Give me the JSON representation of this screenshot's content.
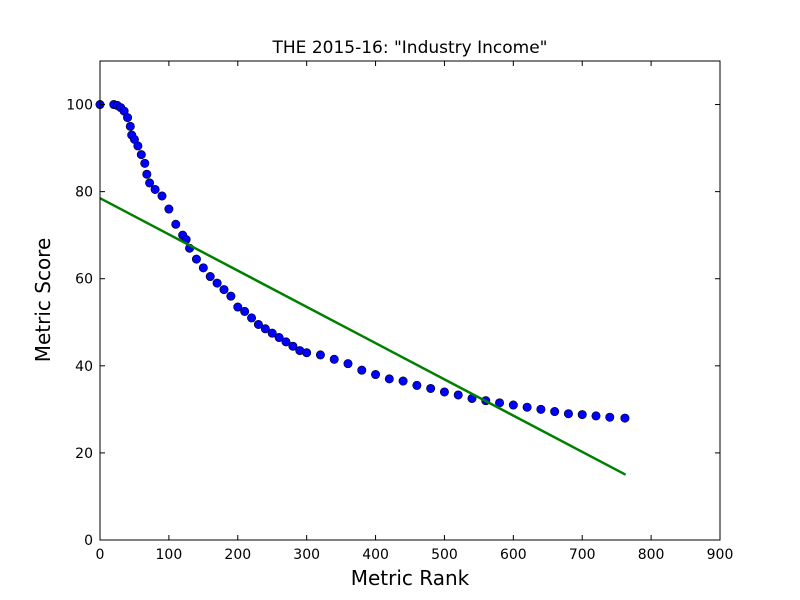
{
  "chart_data": {
    "type": "scatter",
    "title": "THE 2015-16: \"Industry Income\"",
    "xlabel": "Metric Rank",
    "ylabel": "Metric Score",
    "xlim": [
      0,
      900
    ],
    "ylim": [
      0,
      110
    ],
    "xticks": [
      0,
      100,
      200,
      300,
      400,
      500,
      600,
      700,
      800,
      900
    ],
    "yticks": [
      0,
      20,
      40,
      60,
      80,
      100
    ],
    "grid": false,
    "legend": "none",
    "series": [
      {
        "kind": "scatter",
        "color": "#0000ff",
        "edge_color": "#000000",
        "points": [
          [
            0,
            100
          ],
          [
            20,
            100
          ],
          [
            25,
            99.8
          ],
          [
            30,
            99.3
          ],
          [
            35,
            98.5
          ],
          [
            40,
            97
          ],
          [
            44,
            95
          ],
          [
            46,
            93
          ],
          [
            50,
            92
          ],
          [
            55,
            90.5
          ],
          [
            60,
            88.5
          ],
          [
            65,
            86.5
          ],
          [
            68,
            84
          ],
          [
            72,
            82
          ],
          [
            80,
            80.5
          ],
          [
            90,
            79
          ],
          [
            100,
            76
          ],
          [
            110,
            72.5
          ],
          [
            120,
            70
          ],
          [
            125,
            69
          ],
          [
            130,
            67
          ],
          [
            140,
            64.5
          ],
          [
            150,
            62.5
          ],
          [
            160,
            60.5
          ],
          [
            170,
            59
          ],
          [
            180,
            57.5
          ],
          [
            190,
            56
          ],
          [
            200,
            53.5
          ],
          [
            210,
            52.5
          ],
          [
            220,
            51
          ],
          [
            230,
            49.5
          ],
          [
            240,
            48.5
          ],
          [
            250,
            47.5
          ],
          [
            260,
            46.5
          ],
          [
            270,
            45.5
          ],
          [
            280,
            44.5
          ],
          [
            290,
            43.5
          ],
          [
            300,
            43
          ],
          [
            320,
            42.5
          ],
          [
            340,
            41.5
          ],
          [
            360,
            40.5
          ],
          [
            380,
            39
          ],
          [
            400,
            38
          ],
          [
            420,
            37
          ],
          [
            440,
            36.5
          ],
          [
            460,
            35.5
          ],
          [
            480,
            34.8
          ],
          [
            500,
            34
          ],
          [
            520,
            33.3
          ],
          [
            540,
            32.5
          ],
          [
            560,
            32
          ],
          [
            580,
            31.5
          ],
          [
            600,
            31
          ],
          [
            620,
            30.5
          ],
          [
            640,
            30
          ],
          [
            660,
            29.5
          ],
          [
            680,
            29
          ],
          [
            700,
            28.8
          ],
          [
            720,
            28.5
          ],
          [
            740,
            28.2
          ],
          [
            762,
            28
          ]
        ]
      },
      {
        "kind": "line",
        "color": "#008000",
        "points": [
          [
            0,
            78.5
          ],
          [
            763,
            15
          ]
        ]
      }
    ]
  }
}
